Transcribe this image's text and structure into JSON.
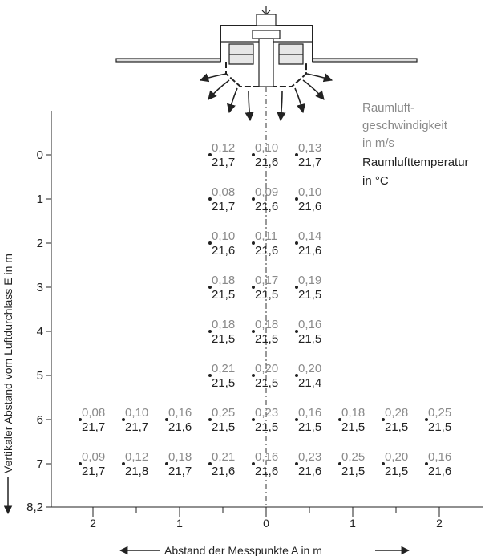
{
  "y_axis": {
    "title": "Vertikaler Abstand vom Luftdurchlass E in m",
    "ticks": [
      "0",
      "1",
      "2",
      "3",
      "4",
      "5",
      "6",
      "7",
      "8,2"
    ]
  },
  "x_axis": {
    "title": "Abstand der Messpunkte A in m",
    "ticks": [
      "2",
      "1",
      "0",
      "1",
      "2"
    ]
  },
  "legend": {
    "velocity_lines": [
      "Raumluft-",
      "geschwindigkeit",
      "in m/s"
    ],
    "temperature_lines": [
      "Raumlufttemperatur",
      "in °C"
    ]
  },
  "colors": {
    "velocity": "#8a8a8a",
    "temperature": "#222222",
    "lines": "#333333"
  },
  "icons": [
    "ceiling-diffuser-icon",
    "airflow-arrows-icon",
    "centerline"
  ],
  "measurements": {
    "columns_m": [
      -2,
      -1.5,
      -1,
      -0.5,
      0,
      0.5,
      1,
      1.5,
      2
    ],
    "rows": [
      {
        "distance_m": 0,
        "points": [
          {
            "a_m": -0.5,
            "velocity": "0,12",
            "temperature": "21,7"
          },
          {
            "a_m": 0,
            "velocity": "0,10",
            "temperature": "21,6"
          },
          {
            "a_m": 0.5,
            "velocity": "0,13",
            "temperature": "21,7"
          }
        ]
      },
      {
        "distance_m": 1,
        "points": [
          {
            "a_m": -0.5,
            "velocity": "0,08",
            "temperature": "21,7"
          },
          {
            "a_m": 0,
            "velocity": "0,09",
            "temperature": "21,6"
          },
          {
            "a_m": 0.5,
            "velocity": "0,10",
            "temperature": "21,6"
          }
        ]
      },
      {
        "distance_m": 2,
        "points": [
          {
            "a_m": -0.5,
            "velocity": "0,10",
            "temperature": "21,6"
          },
          {
            "a_m": 0,
            "velocity": "0,11",
            "temperature": "21,6"
          },
          {
            "a_m": 0.5,
            "velocity": "0,14",
            "temperature": "21,6"
          }
        ]
      },
      {
        "distance_m": 3,
        "points": [
          {
            "a_m": -0.5,
            "velocity": "0,18",
            "temperature": "21,5"
          },
          {
            "a_m": 0,
            "velocity": "0,17",
            "temperature": "21,5"
          },
          {
            "a_m": 0.5,
            "velocity": "0,19",
            "temperature": "21,5"
          }
        ]
      },
      {
        "distance_m": 4,
        "points": [
          {
            "a_m": -0.5,
            "velocity": "0,18",
            "temperature": "21,5"
          },
          {
            "a_m": 0,
            "velocity": "0,18",
            "temperature": "21,5"
          },
          {
            "a_m": 0.5,
            "velocity": "0,16",
            "temperature": "21,5"
          }
        ]
      },
      {
        "distance_m": 5,
        "points": [
          {
            "a_m": -0.5,
            "velocity": "0,21",
            "temperature": "21,5"
          },
          {
            "a_m": 0,
            "velocity": "0,20",
            "temperature": "21,5"
          },
          {
            "a_m": 0.5,
            "velocity": "0,20",
            "temperature": "21,4"
          }
        ]
      },
      {
        "distance_m": 6,
        "points": [
          {
            "a_m": -2,
            "velocity": "0,08",
            "temperature": "21,7"
          },
          {
            "a_m": -1.5,
            "velocity": "0,10",
            "temperature": "21,7"
          },
          {
            "a_m": -1,
            "velocity": "0,16",
            "temperature": "21,6"
          },
          {
            "a_m": -0.5,
            "velocity": "0,25",
            "temperature": "21,5"
          },
          {
            "a_m": 0,
            "velocity": "0,23",
            "temperature": "21,5"
          },
          {
            "a_m": 0.5,
            "velocity": "0,16",
            "temperature": "21,5"
          },
          {
            "a_m": 1,
            "velocity": "0,18",
            "temperature": "21,5"
          },
          {
            "a_m": 1.5,
            "velocity": "0,28",
            "temperature": "21,5"
          },
          {
            "a_m": 2,
            "velocity": "0,25",
            "temperature": "21,5"
          }
        ]
      },
      {
        "distance_m": 7,
        "points": [
          {
            "a_m": -2,
            "velocity": "0,09",
            "temperature": "21,7"
          },
          {
            "a_m": -1.5,
            "velocity": "0,12",
            "temperature": "21,8"
          },
          {
            "a_m": -1,
            "velocity": "0,18",
            "temperature": "21,7"
          },
          {
            "a_m": -0.5,
            "velocity": "0,21",
            "temperature": "21,6"
          },
          {
            "a_m": 0,
            "velocity": "0,16",
            "temperature": "21,6"
          },
          {
            "a_m": 0.5,
            "velocity": "0,23",
            "temperature": "21,6"
          },
          {
            "a_m": 1,
            "velocity": "0,25",
            "temperature": "21,5"
          },
          {
            "a_m": 1.5,
            "velocity": "0,20",
            "temperature": "21,5"
          },
          {
            "a_m": 2,
            "velocity": "0,16",
            "temperature": "21,6"
          }
        ]
      }
    ]
  }
}
